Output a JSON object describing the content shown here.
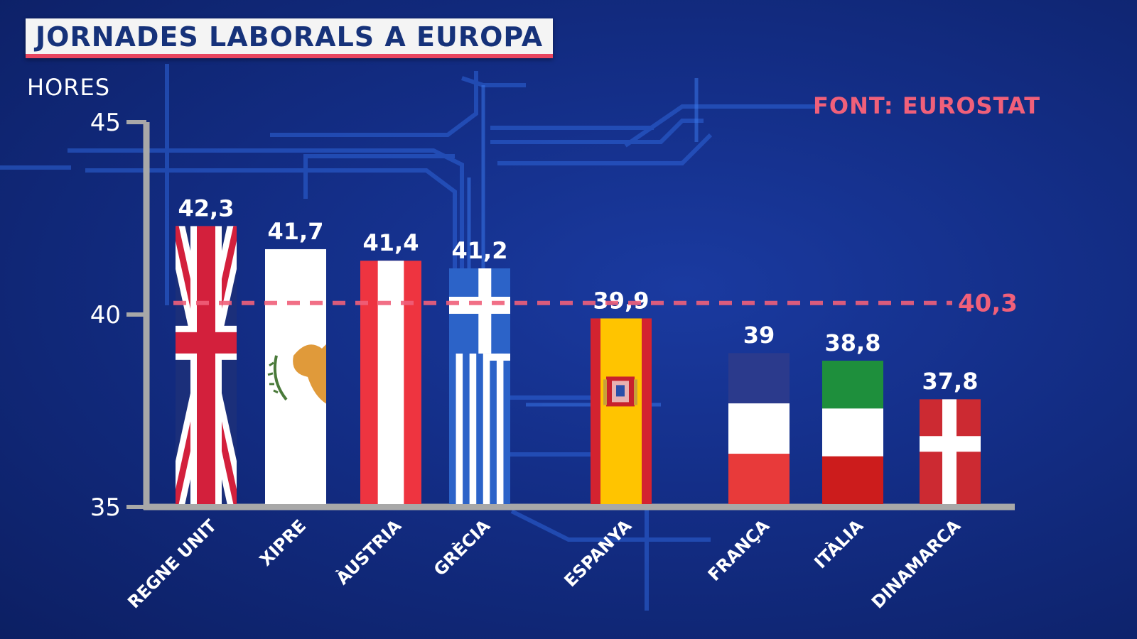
{
  "header": {
    "title": "JORNADES LABORALS A EUROPA",
    "unit": "HORES",
    "source": "FONT: EUROSTAT"
  },
  "chart_data": {
    "type": "bar",
    "title": "JORNADES LABORALS A EUROPA",
    "ylabel": "HORES",
    "ylim": [
      35,
      45
    ],
    "yticks": [
      "35",
      "40",
      "45"
    ],
    "categories": [
      "REGNE UNIT",
      "XIPRE",
      "ÀUSTRIA",
      "GRÈCIA",
      "ESPANYA",
      "FRANÇA",
      "ITÀLIA",
      "DINAMARCA"
    ],
    "values": [
      42.3,
      41.7,
      41.4,
      41.2,
      39.9,
      39.0,
      38.8,
      37.8
    ],
    "value_labels": [
      "42,3",
      "41,7",
      "41,4",
      "41,2",
      "39,9",
      "39",
      "38,8",
      "37,8"
    ],
    "bar_flags": [
      "uk-flag",
      "cyprus-flag",
      "austria-flag",
      "greece-flag",
      "spain-flag",
      "france-flag",
      "italy-flag",
      "denmark-flag"
    ],
    "reference_line": {
      "value": 40.3,
      "label": "40,3",
      "style": "dashed",
      "color": "#f0607a"
    },
    "grid": false,
    "legend": "none"
  }
}
